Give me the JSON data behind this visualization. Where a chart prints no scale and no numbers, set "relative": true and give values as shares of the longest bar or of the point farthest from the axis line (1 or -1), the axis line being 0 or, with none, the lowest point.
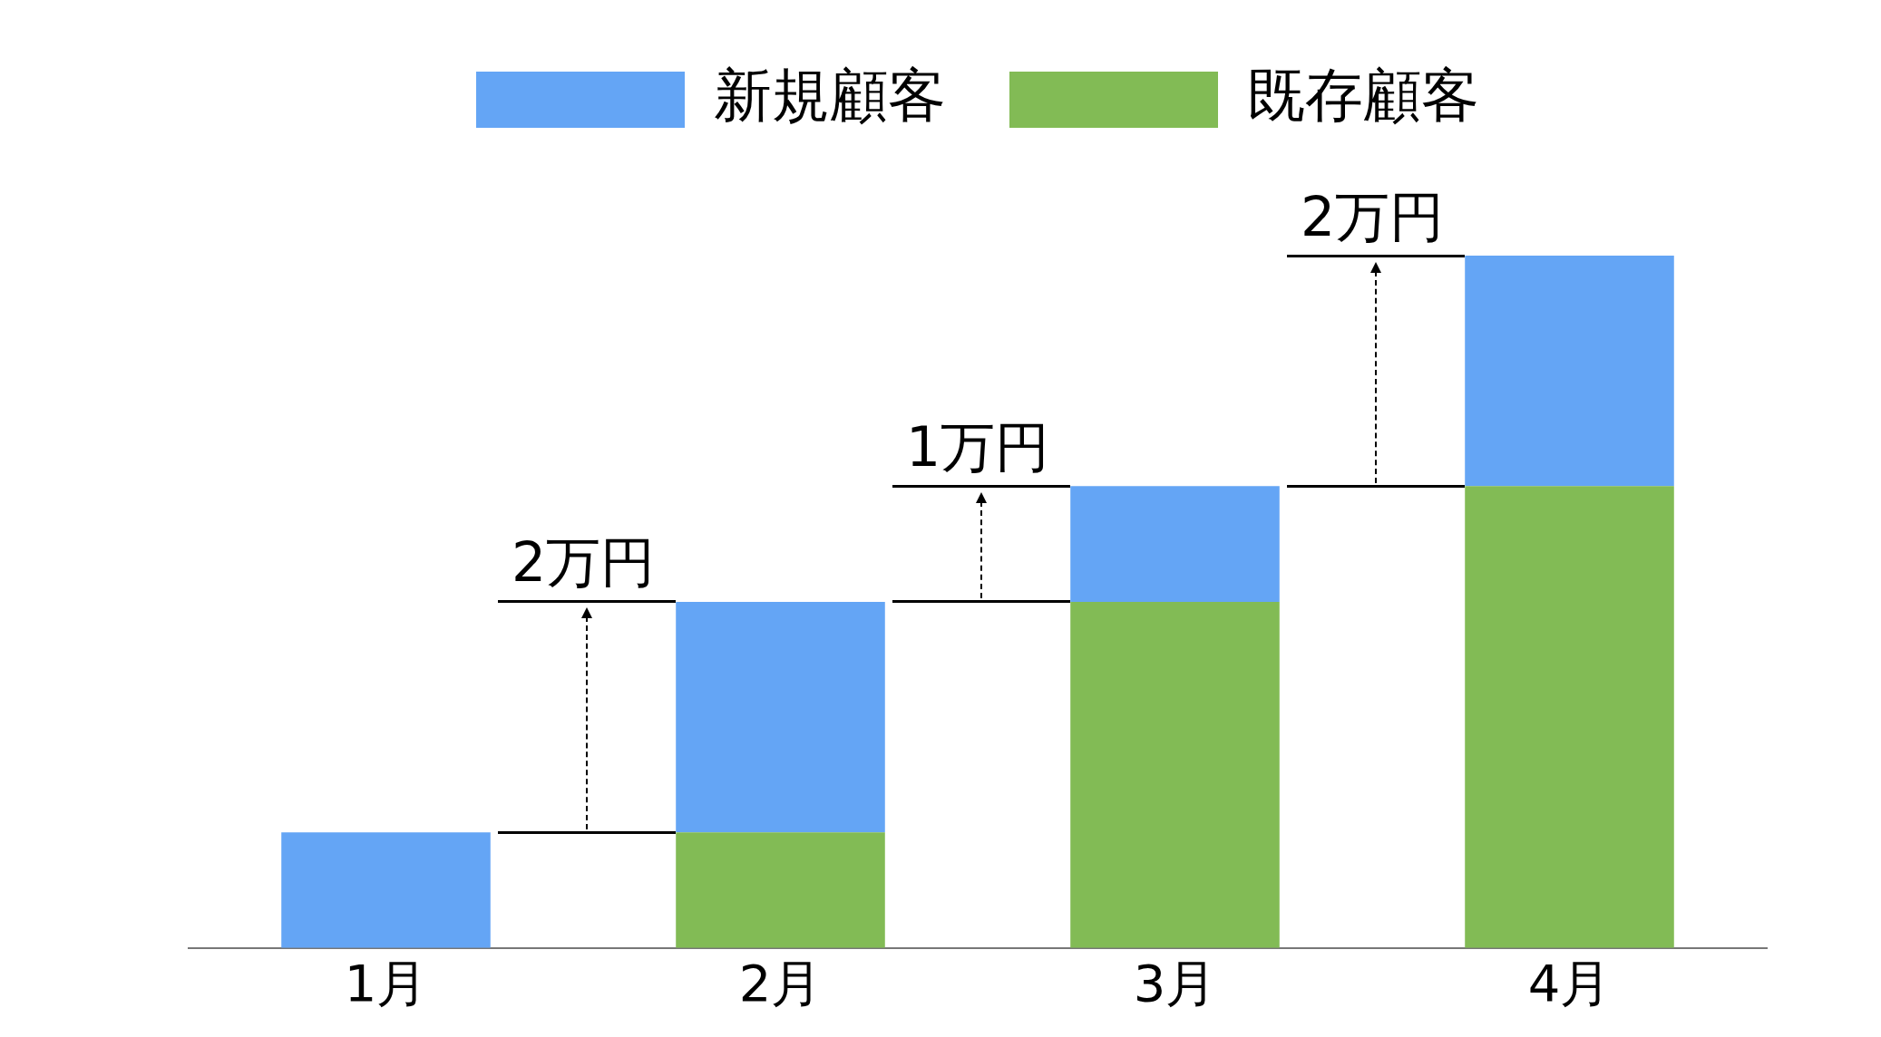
{
  "chart_data": {
    "type": "bar",
    "stacked": true,
    "categories": [
      "1月",
      "2月",
      "3月",
      "4月"
    ],
    "series": [
      {
        "name": "既存顧客",
        "color": "#82bb55",
        "values": [
          0,
          0.167,
          0.5,
          0.667
        ]
      },
      {
        "name": "新規顧客",
        "color": "#64a5f5",
        "values": [
          0.167,
          0.333,
          0.167,
          0.333
        ]
      }
    ],
    "relative": true,
    "grid": false,
    "legend": "top",
    "annotations": [
      "2万円",
      "1万円",
      "2万円"
    ]
  }
}
